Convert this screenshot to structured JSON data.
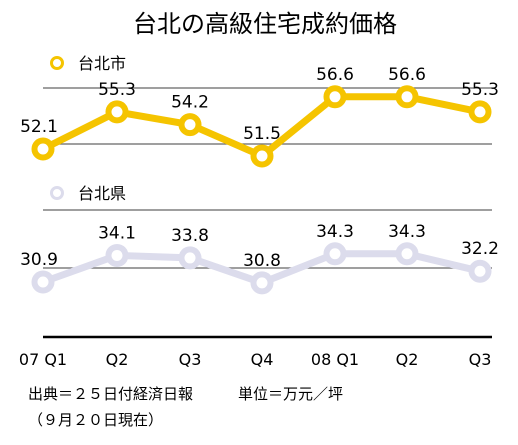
{
  "chart_data": {
    "type": "line",
    "title": "台北の高級住宅成約価格",
    "categories": [
      "07 Q1",
      "Q2",
      "Q3",
      "Q4",
      "08 Q1",
      "Q2",
      "Q3"
    ],
    "series": [
      {
        "name": "台北市",
        "values": [
          52.1,
          55.3,
          54.2,
          51.5,
          56.6,
          56.6,
          55.3
        ],
        "labels": [
          "52.1",
          "55.3",
          "54.2",
          "51.5",
          "56.6",
          "56.6",
          "55.3"
        ],
        "color": "#f5c400"
      },
      {
        "name": "台北県",
        "values": [
          30.9,
          34.1,
          33.8,
          30.8,
          34.3,
          34.3,
          32.2
        ],
        "labels": [
          "30.9",
          "34.1",
          "33.8",
          "30.8",
          "34.3",
          "34.3",
          "32.2"
        ],
        "color": "#dcdcec"
      }
    ],
    "grid": true,
    "legend": "top-left of each panel"
  },
  "footer": {
    "source": "出典＝２５日付経済日報",
    "unit": "単位＝万元／坪",
    "note": "（９月２０日現在）"
  }
}
